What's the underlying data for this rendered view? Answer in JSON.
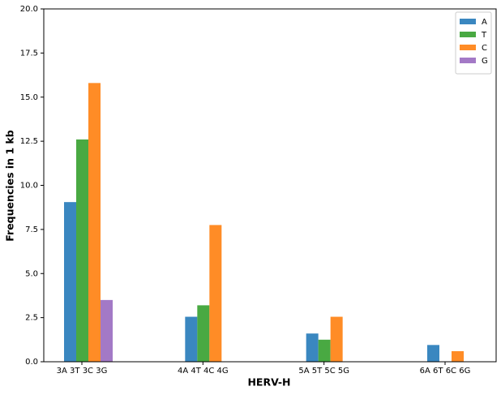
{
  "chart_data": {
    "type": "bar",
    "xlabel": "HERV-H",
    "ylabel": "Frequencies in 1 kb",
    "categories": [
      "3A 3T 3C 3G",
      "4A 4T 4C 4G",
      "5A 5T 5C 5G",
      "6A 6T 6C 6G"
    ],
    "series": [
      {
        "name": "A",
        "color": "#3a87c0",
        "values": [
          9.05,
          2.55,
          1.6,
          0.95
        ]
      },
      {
        "name": "T",
        "color": "#49a942",
        "values": [
          12.6,
          3.2,
          1.25,
          0
        ]
      },
      {
        "name": "C",
        "color": "#ff8c26",
        "values": [
          15.8,
          7.75,
          2.55,
          0.6
        ]
      },
      {
        "name": "G",
        "color": "#a379c6",
        "values": [
          3.5,
          0,
          0,
          0
        ]
      }
    ],
    "ylim": [
      0,
      20
    ],
    "yticks": [
      {
        "value": 0,
        "label": "0.0"
      },
      {
        "value": 2.5,
        "label": "2.5"
      },
      {
        "value": 5,
        "label": "5.0"
      },
      {
        "value": 7.5,
        "label": "7.5"
      },
      {
        "value": 10,
        "label": "10.0"
      },
      {
        "value": 12.5,
        "label": "12.5"
      },
      {
        "value": 15,
        "label": "15.0"
      },
      {
        "value": 17.5,
        "label": "17.5"
      },
      {
        "value": 20,
        "label": "20.0"
      }
    ],
    "legend": "upper right"
  }
}
